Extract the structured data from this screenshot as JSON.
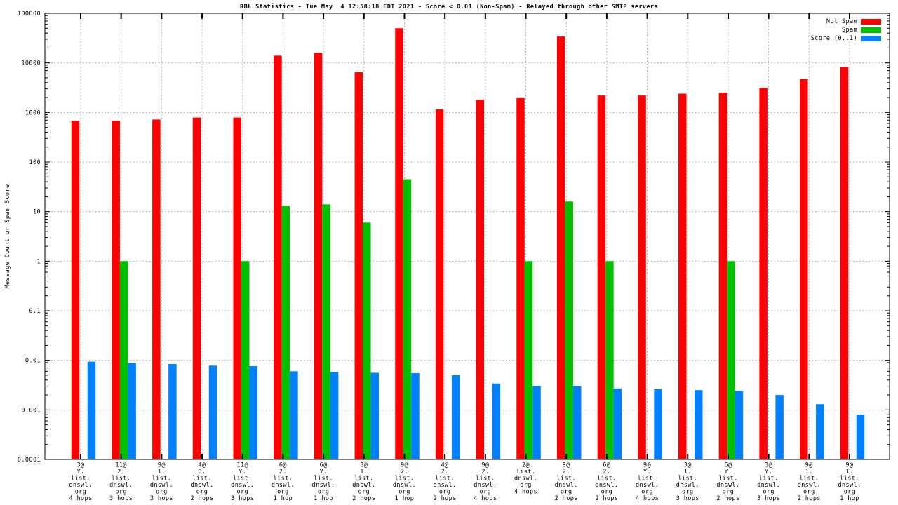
{
  "chart_data": {
    "type": "bar",
    "title": "RBL Statistics - Tue May  4 12:58:18 EDT 2021 - Score < 0.01 (Non-Spam) - Relayed through other SMTP servers",
    "ylabel": "Message Count or Spam Score",
    "xlabel": "",
    "y_scale": "log10",
    "ylim": [
      0.0001,
      100000
    ],
    "ytick_labels": [
      "100000",
      "10000",
      "1000",
      "100",
      "10",
      "1",
      "0.1",
      "0.01",
      "0.001",
      "0.0001"
    ],
    "grid": true,
    "legend_position": "top-right-inside",
    "border_color": "#000000",
    "grid_color": "#a0a0a0",
    "categories": [
      [
        "3@",
        "Y.",
        "list.",
        "dnswl.",
        "org",
        "4 hops"
      ],
      [
        "11@",
        "2.",
        "list.",
        "dnswl.",
        "org",
        "3 hops"
      ],
      [
        "9@",
        "1.",
        "list.",
        "dnswl.",
        "org",
        "3 hops"
      ],
      [
        "4@",
        "0.",
        "list.",
        "dnswl.",
        "org",
        "2 hops"
      ],
      [
        "11@",
        "Y.",
        "list.",
        "dnswl.",
        "org",
        "3 hops"
      ],
      [
        "6@",
        "2.",
        "list.",
        "dnswl.",
        "org",
        "1 hop"
      ],
      [
        "6@",
        "Y.",
        "list.",
        "dnswl.",
        "org",
        "1 hop"
      ],
      [
        "3@",
        "1.",
        "list.",
        "dnswl.",
        "org",
        "2 hops"
      ],
      [
        "9@",
        "2.",
        "list.",
        "dnswl.",
        "org",
        "1 hop"
      ],
      [
        "4@",
        "2.",
        "list.",
        "dnswl.",
        "org",
        "2 hops"
      ],
      [
        "9@",
        "2.",
        "list.",
        "dnswl.",
        "org",
        "4 hops"
      ],
      [
        "2@",
        "list.",
        "dnswl.",
        "org",
        "4 hops"
      ],
      [
        "9@",
        "2.",
        "list.",
        "dnswl.",
        "org",
        "2 hops"
      ],
      [
        "6@",
        "2.",
        "list.",
        "dnswl.",
        "org",
        "2 hops"
      ],
      [
        "9@",
        "Y.",
        "list.",
        "dnswl.",
        "org",
        "4 hops"
      ],
      [
        "3@",
        "1.",
        "list.",
        "dnswl.",
        "org",
        "3 hops"
      ],
      [
        "6@",
        "Y.",
        "list.",
        "dnswl.",
        "org",
        "2 hops"
      ],
      [
        "3@",
        "Y.",
        "list.",
        "dnswl.",
        "org",
        "3 hops"
      ],
      [
        "9@",
        "1.",
        "list.",
        "dnswl.",
        "org",
        "2 hops"
      ],
      [
        "9@",
        "1.",
        "list.",
        "dnswl.",
        "org",
        "1 hop"
      ]
    ],
    "series": [
      {
        "name": "Not Spam",
        "color": "#ff0000",
        "values": [
          680,
          680,
          720,
          790,
          790,
          14000,
          16000,
          6500,
          50000,
          1150,
          1800,
          1950,
          34000,
          2200,
          2200,
          2400,
          2500,
          3100,
          4700,
          8200
        ]
      },
      {
        "name": "Spam",
        "color": "#00c000",
        "values": [
          null,
          1,
          null,
          null,
          1,
          13,
          14,
          6,
          45,
          null,
          null,
          1,
          16,
          1,
          null,
          null,
          1,
          null,
          null,
          null
        ]
      },
      {
        "name": "Score (0..1)",
        "color": "#0080ff",
        "values": [
          0.0094,
          0.0088,
          0.0084,
          0.0078,
          0.0076,
          0.006,
          0.0058,
          0.0056,
          0.0055,
          0.005,
          0.0034,
          0.003,
          0.003,
          0.0027,
          0.0026,
          0.0025,
          0.0024,
          0.002,
          0.0013,
          0.0008
        ]
      }
    ]
  }
}
